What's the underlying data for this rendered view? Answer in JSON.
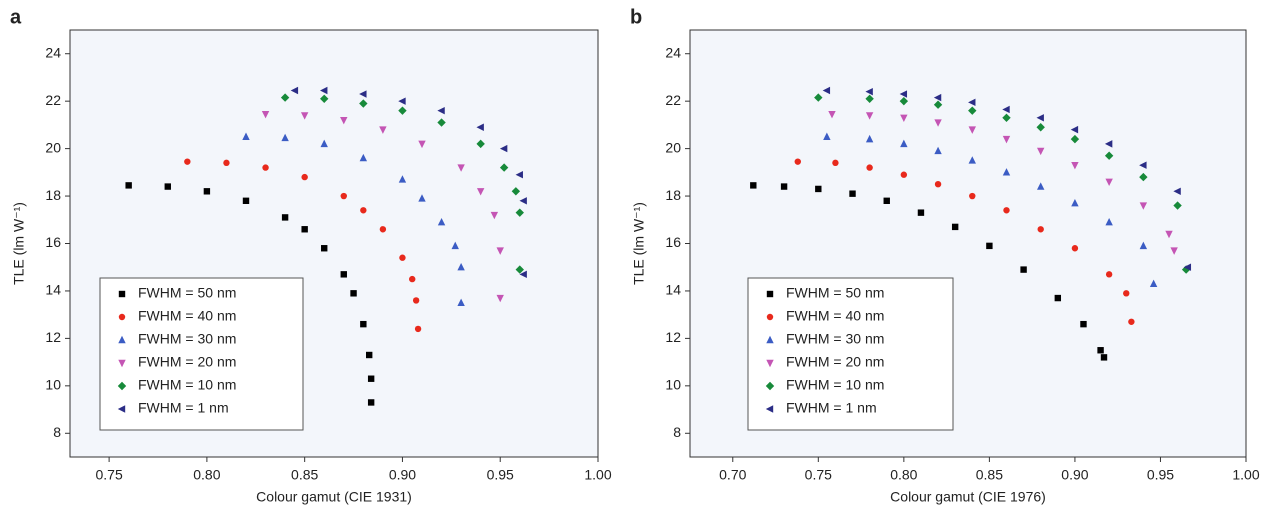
{
  "chart_data": [
    {
      "type": "scatter",
      "panel_label": "a",
      "x_label": "Colour gamut (CIE 1931)",
      "y_label": "TLE (lm W⁻¹)",
      "xlim": [
        0.73,
        1.0
      ],
      "ylim": [
        7,
        25
      ],
      "xticks": [
        0.75,
        {
          "value": 0.8,
          "label": "0.80"
        },
        0.85,
        {
          "value": 0.9,
          "label": "0.90"
        },
        0.95,
        {
          "value": 1.0,
          "label": "1.00"
        }
      ],
      "yticks": [
        8,
        10,
        12,
        14,
        16,
        18,
        20,
        22,
        24
      ],
      "legend": "lower-left",
      "series": [
        {
          "name": "FWHM = 50 nm",
          "color": "#000000",
          "marker": "square",
          "x": [
            0.76,
            0.78,
            0.8,
            0.82,
            0.84,
            0.85,
            0.86,
            0.87,
            0.875,
            0.88,
            0.883,
            0.884,
            0.884
          ],
          "values": [
            18.45,
            18.4,
            18.2,
            17.8,
            17.1,
            16.6,
            15.8,
            14.7,
            13.9,
            12.6,
            11.3,
            10.3,
            9.3
          ]
        },
        {
          "name": "FWHM = 40 nm",
          "color": "#e8291c",
          "marker": "circle",
          "x": [
            0.79,
            0.81,
            0.83,
            0.85,
            0.87,
            0.88,
            0.89,
            0.9,
            0.905,
            0.907,
            0.908
          ],
          "values": [
            19.45,
            19.4,
            19.2,
            18.8,
            18.0,
            17.4,
            16.6,
            15.4,
            14.5,
            13.6,
            12.4
          ]
        },
        {
          "name": "FWHM = 30 nm",
          "color": "#3b5cc4",
          "marker": "triangle-up",
          "x": [
            0.82,
            0.84,
            0.86,
            0.88,
            0.9,
            0.91,
            0.92,
            0.927,
            0.93,
            0.93
          ],
          "values": [
            20.5,
            20.45,
            20.2,
            19.6,
            18.7,
            17.9,
            16.9,
            15.9,
            15.0,
            13.5
          ]
        },
        {
          "name": "FWHM = 20 nm",
          "color": "#c455b4",
          "marker": "triangle-down",
          "x": [
            0.83,
            0.85,
            0.87,
            0.89,
            0.91,
            0.93,
            0.94,
            0.947,
            0.95,
            0.95
          ],
          "values": [
            21.45,
            21.4,
            21.2,
            20.8,
            20.2,
            19.2,
            18.2,
            17.2,
            15.7,
            13.7
          ]
        },
        {
          "name": "FWHM = 10 nm",
          "color": "#178a3a",
          "marker": "diamond",
          "x": [
            0.84,
            0.86,
            0.88,
            0.9,
            0.92,
            0.94,
            0.952,
            0.958,
            0.96,
            0.96
          ],
          "values": [
            22.15,
            22.1,
            21.9,
            21.6,
            21.1,
            20.2,
            19.2,
            18.2,
            17.3,
            14.9
          ]
        },
        {
          "name": "FWHM = 1 nm",
          "color": "#2b2d86",
          "marker": "triangle-left",
          "x": [
            0.845,
            0.86,
            0.88,
            0.9,
            0.92,
            0.94,
            0.952,
            0.96,
            0.962,
            0.962
          ],
          "values": [
            22.45,
            22.45,
            22.3,
            22.0,
            21.6,
            20.9,
            20.0,
            18.9,
            17.8,
            14.7
          ]
        }
      ]
    },
    {
      "type": "scatter",
      "panel_label": "b",
      "x_label": "Colour gamut (CIE 1976)",
      "y_label": "TLE (lm W⁻¹)",
      "xlim": [
        0.675,
        1.0
      ],
      "ylim": [
        7,
        25
      ],
      "xticks": [
        {
          "value": 0.7,
          "label": "0.70"
        },
        0.75,
        {
          "value": 0.8,
          "label": "0.80"
        },
        0.85,
        {
          "value": 0.9,
          "label": "0.90"
        },
        0.95,
        {
          "value": 1.0,
          "label": "1.00"
        }
      ],
      "yticks": [
        8,
        10,
        12,
        14,
        16,
        18,
        20,
        22,
        24
      ],
      "legend": "lower-left",
      "series": [
        {
          "name": "FWHM = 50 nm",
          "color": "#000000",
          "marker": "square",
          "x": [
            0.712,
            0.73,
            0.75,
            0.77,
            0.79,
            0.81,
            0.83,
            0.85,
            0.87,
            0.89,
            0.905,
            0.915,
            0.917
          ],
          "values": [
            18.45,
            18.4,
            18.3,
            18.1,
            17.8,
            17.3,
            16.7,
            15.9,
            14.9,
            13.7,
            12.6,
            11.5,
            11.2
          ]
        },
        {
          "name": "FWHM = 40 nm",
          "color": "#e8291c",
          "marker": "circle",
          "x": [
            0.738,
            0.76,
            0.78,
            0.8,
            0.82,
            0.84,
            0.86,
            0.88,
            0.9,
            0.92,
            0.93,
            0.933
          ],
          "values": [
            19.45,
            19.4,
            19.2,
            18.9,
            18.5,
            18.0,
            17.4,
            16.6,
            15.8,
            14.7,
            13.9,
            12.7
          ]
        },
        {
          "name": "FWHM = 30 nm",
          "color": "#3b5cc4",
          "marker": "triangle-up",
          "x": [
            0.755,
            0.78,
            0.8,
            0.82,
            0.84,
            0.86,
            0.88,
            0.9,
            0.92,
            0.94,
            0.946
          ],
          "values": [
            20.5,
            20.4,
            20.2,
            19.9,
            19.5,
            19.0,
            18.4,
            17.7,
            16.9,
            15.9,
            14.3
          ]
        },
        {
          "name": "FWHM = 20 nm",
          "color": "#c455b4",
          "marker": "triangle-down",
          "x": [
            0.758,
            0.78,
            0.8,
            0.82,
            0.84,
            0.86,
            0.88,
            0.9,
            0.92,
            0.94,
            0.955,
            0.958
          ],
          "values": [
            21.45,
            21.4,
            21.3,
            21.1,
            20.8,
            20.4,
            19.9,
            19.3,
            18.6,
            17.6,
            16.4,
            15.7
          ]
        },
        {
          "name": "FWHM = 10 nm",
          "color": "#178a3a",
          "marker": "diamond",
          "x": [
            0.75,
            0.78,
            0.8,
            0.82,
            0.84,
            0.86,
            0.88,
            0.9,
            0.92,
            0.94,
            0.96,
            0.965
          ],
          "values": [
            22.15,
            22.1,
            22.0,
            21.85,
            21.6,
            21.3,
            20.9,
            20.4,
            19.7,
            18.8,
            17.6,
            14.9
          ]
        },
        {
          "name": "FWHM = 1 nm",
          "color": "#2b2d86",
          "marker": "triangle-left",
          "x": [
            0.755,
            0.78,
            0.8,
            0.82,
            0.84,
            0.86,
            0.88,
            0.9,
            0.92,
            0.94,
            0.96,
            0.966
          ],
          "values": [
            22.45,
            22.4,
            22.3,
            22.15,
            21.95,
            21.65,
            21.3,
            20.8,
            20.2,
            19.3,
            18.2,
            15.0
          ]
        }
      ]
    }
  ]
}
